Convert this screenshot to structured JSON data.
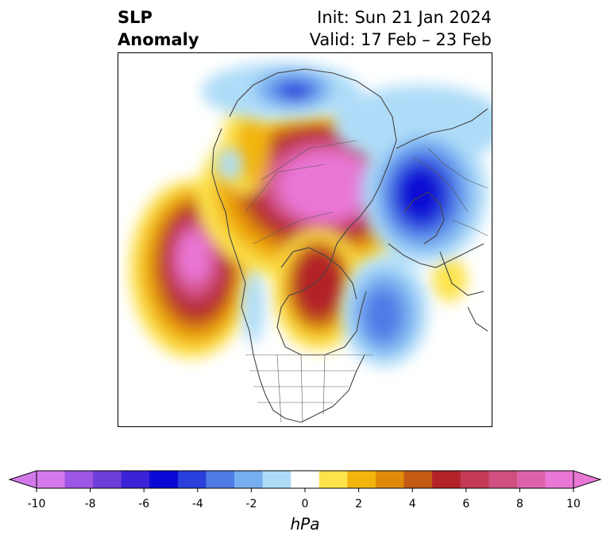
{
  "header": {
    "variable_line1": "SLP",
    "variable_line2": "Anomaly",
    "init": "Init: Sun 21 Jan 2024",
    "valid": "Valid: 17 Feb – 23 Feb"
  },
  "legend": {
    "unit": "hPa",
    "levels": [
      -10,
      -9,
      -8,
      -7,
      -6,
      -5,
      -4,
      -3,
      -2,
      -1,
      1,
      2,
      3,
      4,
      5,
      6,
      7,
      8,
      9,
      10
    ],
    "colors": [
      "#d479ec",
      "#9d55e3",
      "#6f3dd9",
      "#3a23d6",
      "#0a08d4",
      "#2a40dc",
      "#4f7be6",
      "#76aef0",
      "#aedcf8",
      "#ffffff",
      "#fde34c",
      "#f2b50e",
      "#e08a0c",
      "#c45a14",
      "#b22428",
      "#c23a55",
      "#cf4f7f",
      "#de62ab",
      "#e977d6"
    ],
    "tick_labels": [
      "-10",
      "-8",
      "-6",
      "-4",
      "-2",
      "0",
      "2",
      "4",
      "6",
      "8",
      "10"
    ]
  }
}
